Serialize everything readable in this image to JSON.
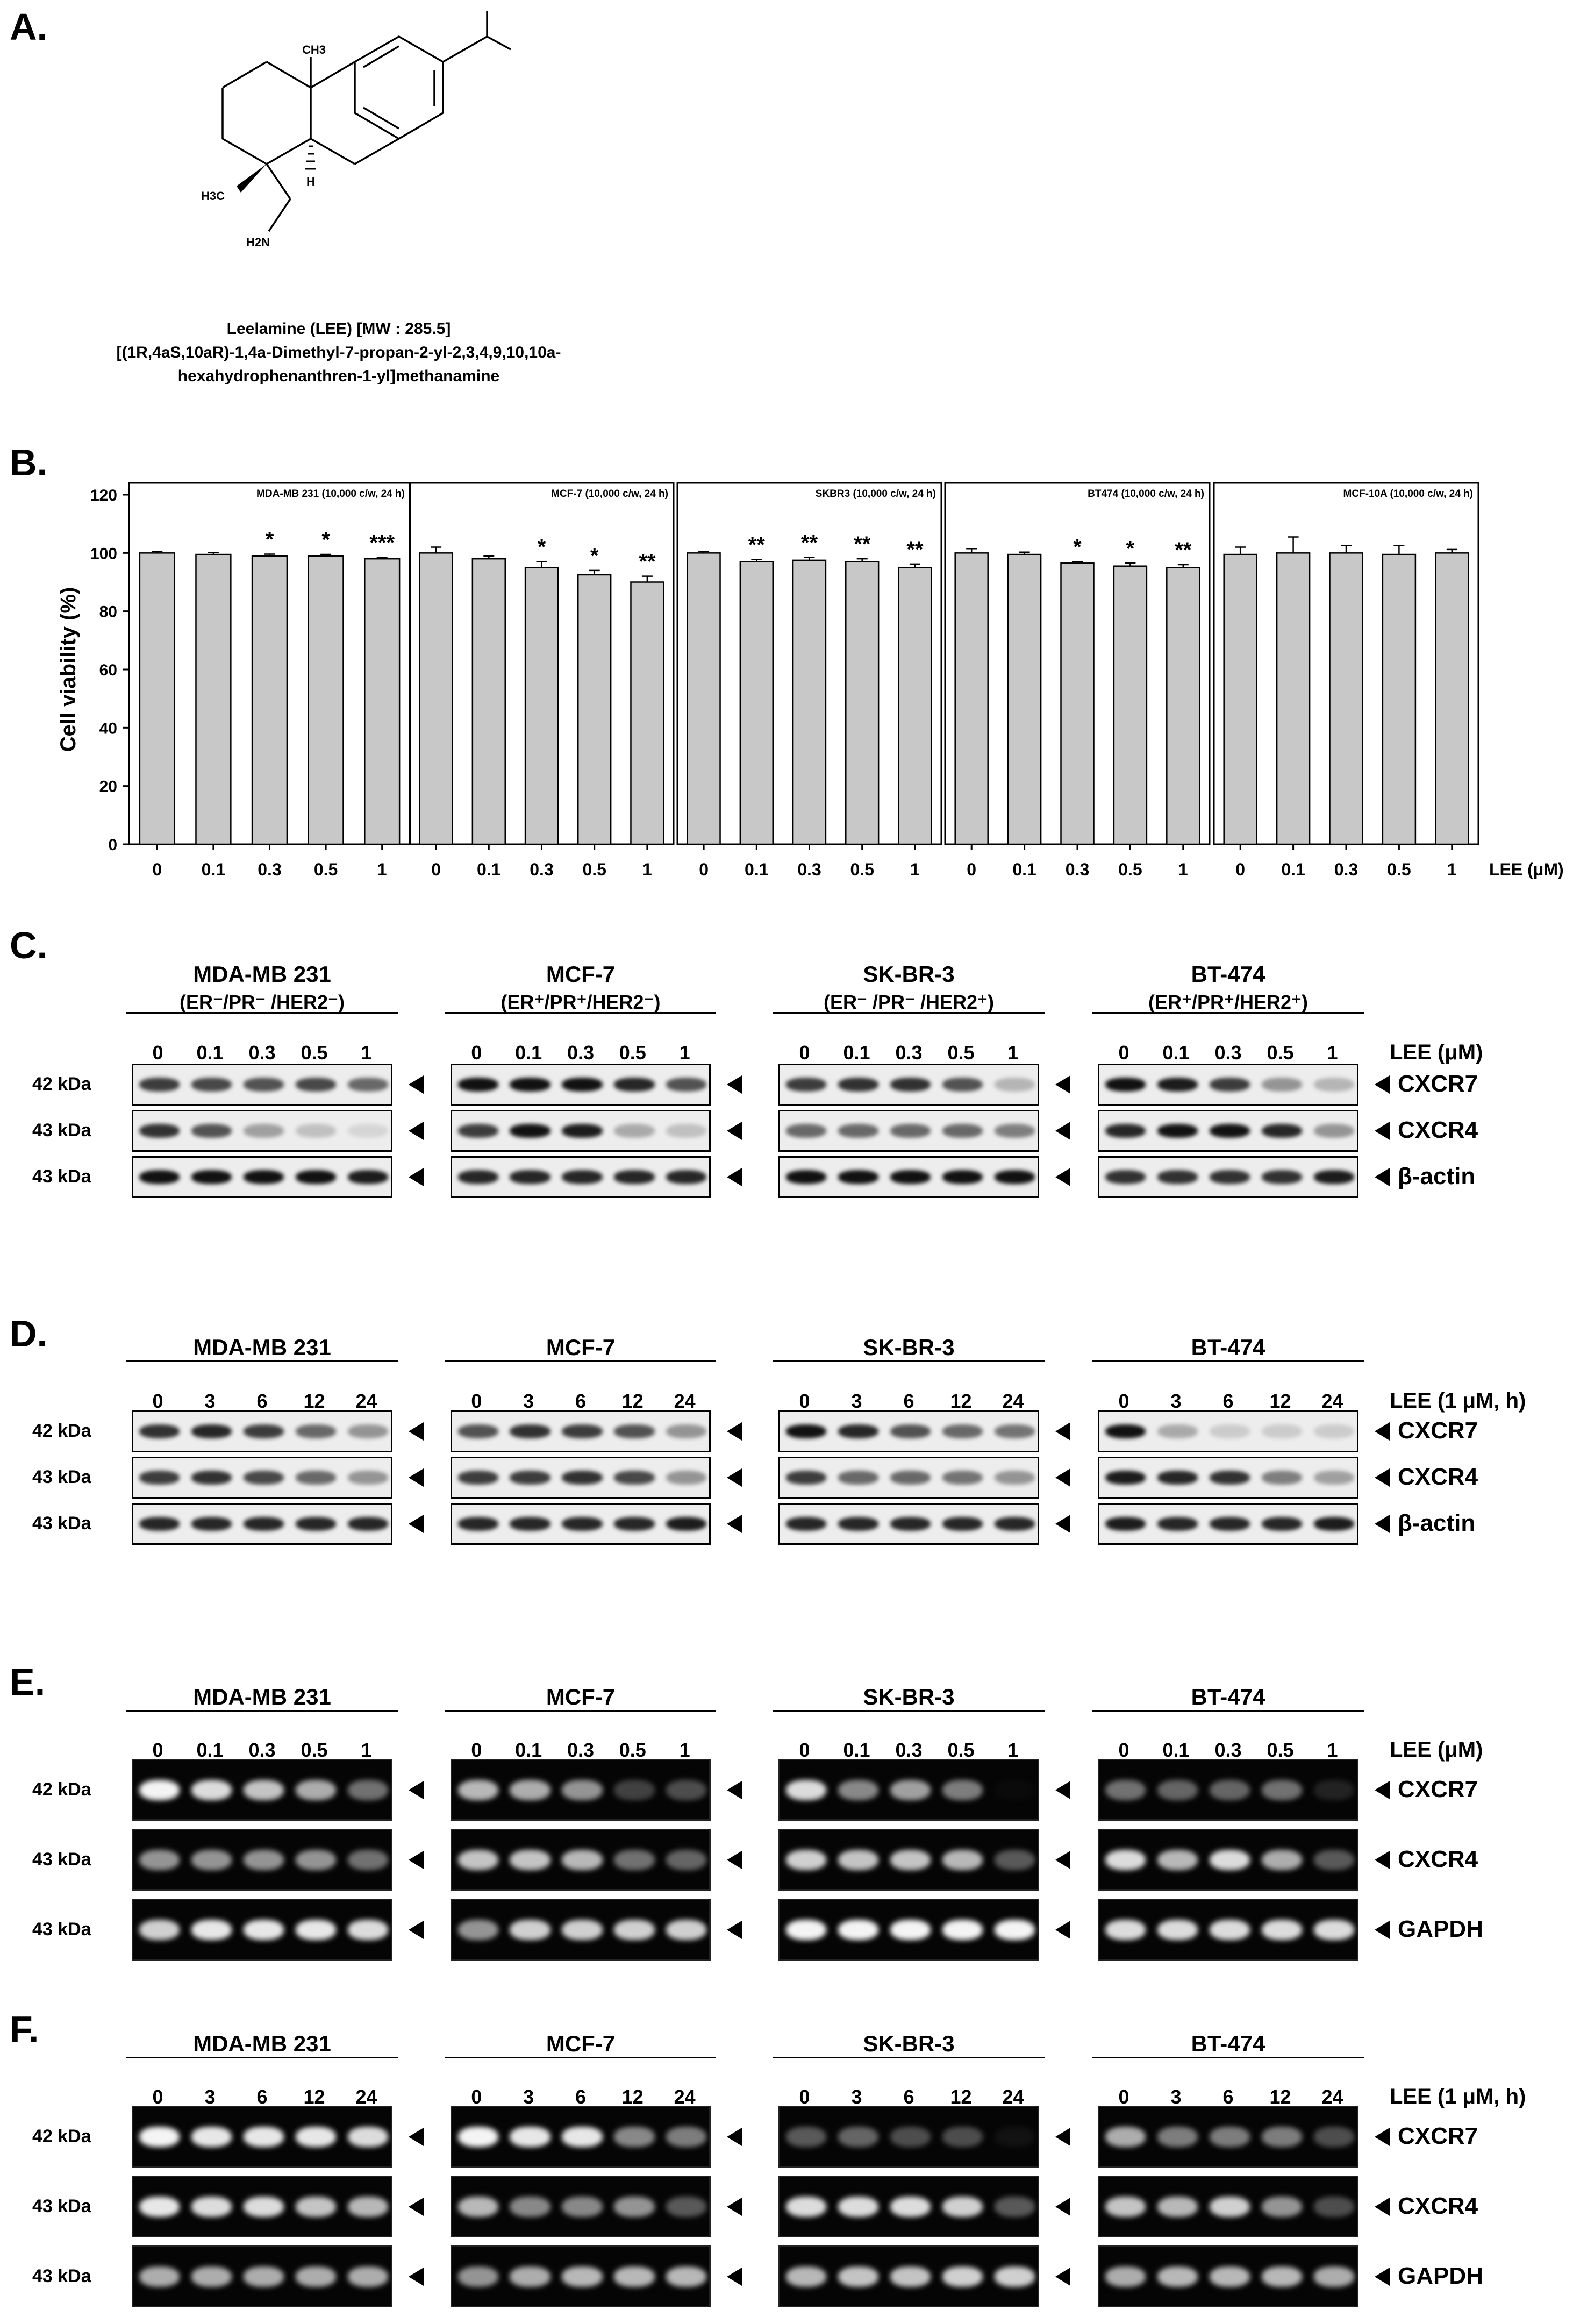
{
  "panels": {
    "A": "A.",
    "B": "B.",
    "C": "C.",
    "D": "D.",
    "E": "E.",
    "F": "F."
  },
  "structure": {
    "atom_labels": [
      "CH3",
      "H3C",
      "H",
      "H2N"
    ],
    "caption_line1": "Leelamine (LEE) [MW : 285.5]",
    "caption_line2": "[(1R,4aS,10aR)-1,4a-Dimethyl-7-propan-2-yl-2,3,4,9,10,10a-",
    "caption_line3": "hexahydrophenanthren-1-yl]methanamine"
  },
  "chart_data": {
    "type": "bar",
    "ylabel": "Cell viability (%)",
    "xlabel": "LEE (μM)",
    "ylim": [
      0,
      120
    ],
    "yticks": [
      "0",
      "20",
      "40",
      "60",
      "80",
      "100",
      "120"
    ],
    "categories": [
      "0",
      "0.1",
      "0.3",
      "0.5",
      "1"
    ],
    "panels": [
      {
        "title": "MDA-MB 231 (10,000 c/w, 24 h)",
        "values": [
          100,
          99.5,
          99,
          99,
          98
        ],
        "errors": [
          0.5,
          0.6,
          0.6,
          0.5,
          0.5
        ],
        "sig": [
          "",
          "",
          "*",
          "*",
          "***"
        ]
      },
      {
        "title": "MCF-7 (10,000 c/w, 24 h)",
        "values": [
          100,
          98,
          95,
          92.5,
          90
        ],
        "errors": [
          2,
          1,
          2,
          1.5,
          2
        ],
        "sig": [
          "",
          "",
          "*",
          "*",
          "**"
        ]
      },
      {
        "title": "SKBR3 (10,000 c/w, 24 h)",
        "values": [
          100,
          97,
          97.5,
          97,
          95
        ],
        "errors": [
          0.5,
          0.8,
          1,
          1,
          1.2
        ],
        "sig": [
          "",
          "**",
          "**",
          "**",
          "**"
        ]
      },
      {
        "title": "BT474 (10,000 c/w, 24 h)",
        "values": [
          100,
          99.5,
          96.5,
          95.5,
          95
        ],
        "errors": [
          1.5,
          0.8,
          0.5,
          1,
          1
        ],
        "sig": [
          "",
          "",
          "*",
          "*",
          "**"
        ]
      },
      {
        "title": "MCF-10A (10,000 c/w, 24 h)",
        "values": [
          99.5,
          100,
          100,
          99.5,
          100
        ],
        "errors": [
          2.5,
          5.5,
          2.5,
          3,
          1.2
        ],
        "sig": [
          "",
          "",
          "",
          "",
          ""
        ]
      }
    ]
  },
  "blots": {
    "C": {
      "cell_lines": [
        {
          "name": "MDA-MB 231",
          "subtype": "(ER⁻/PR⁻ /HER2⁻)"
        },
        {
          "name": "MCF-7",
          "subtype": "(ER⁺/PR⁺/HER2⁻)"
        },
        {
          "name": "SK-BR-3",
          "subtype": "(ER⁻ /PR⁻ /HER2⁺)"
        },
        {
          "name": "BT-474",
          "subtype": "(ER⁺/PR⁺/HER2⁺)"
        }
      ],
      "lanes": [
        "0",
        "0.1",
        "0.3",
        "0.5",
        "1"
      ],
      "treatment": "LEE (μM)",
      "rows": [
        {
          "kda": "42 kDa",
          "label": "CXCR7"
        },
        {
          "kda": "43 kDa",
          "label": "CXCR4"
        },
        {
          "kda": "43 kDa",
          "label": "β-actin"
        }
      ]
    },
    "D": {
      "cell_lines": [
        {
          "name": "MDA-MB 231"
        },
        {
          "name": "MCF-7"
        },
        {
          "name": "SK-BR-3"
        },
        {
          "name": "BT-474"
        }
      ],
      "lanes": [
        "0",
        "3",
        "6",
        "12",
        "24"
      ],
      "treatment": "LEE (1 μM, h)",
      "rows": [
        {
          "kda": "42 kDa",
          "label": "CXCR7"
        },
        {
          "kda": "43 kDa",
          "label": "CXCR4"
        },
        {
          "kda": "43 kDa",
          "label": "β-actin"
        }
      ]
    },
    "E": {
      "cell_lines": [
        {
          "name": "MDA-MB 231"
        },
        {
          "name": "MCF-7"
        },
        {
          "name": "SK-BR-3"
        },
        {
          "name": "BT-474"
        }
      ],
      "lanes": [
        "0",
        "0.1",
        "0.3",
        "0.5",
        "1"
      ],
      "treatment": "LEE (μM)",
      "rows": [
        {
          "kda": "42 kDa",
          "label": "CXCR7"
        },
        {
          "kda": "43 kDa",
          "label": "CXCR4"
        },
        {
          "kda": "43 kDa",
          "label": "GAPDH"
        }
      ]
    },
    "F": {
      "cell_lines": [
        {
          "name": "MDA-MB 231"
        },
        {
          "name": "MCF-7"
        },
        {
          "name": "SK-BR-3"
        },
        {
          "name": "BT-474"
        }
      ],
      "lanes": [
        "0",
        "3",
        "6",
        "12",
        "24"
      ],
      "treatment": "LEE (1 μM, h)",
      "rows": [
        {
          "kda": "42 kDa",
          "label": "CXCR7"
        },
        {
          "kda": "43 kDa",
          "label": "CXCR4"
        },
        {
          "kda": "43 kDa",
          "label": "GAPDH"
        }
      ]
    }
  }
}
